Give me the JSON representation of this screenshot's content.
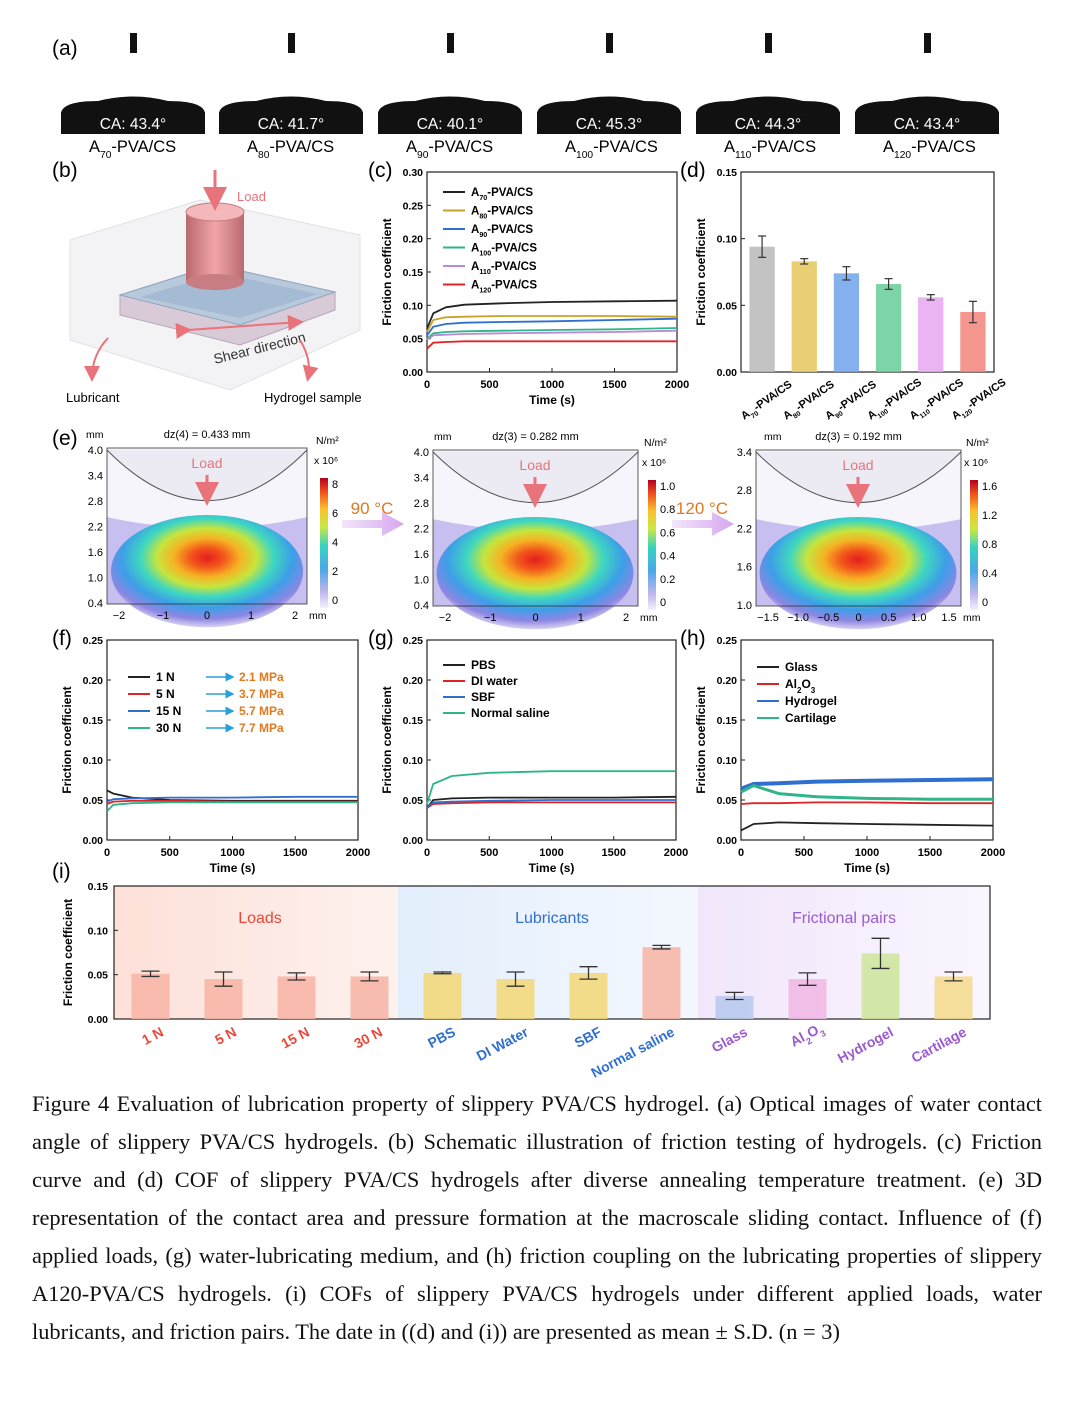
{
  "panel_labels": {
    "a": "(a)",
    "b": "(b)",
    "c": "(c)",
    "d": "(d)",
    "e": "(e)",
    "f": "(f)",
    "g": "(g)",
    "h": "(h)",
    "i": "(i)"
  },
  "contact_angles": [
    {
      "ca": "CA: 43.4°",
      "sample": "A70-PVA/CS",
      "prefix": "A",
      "sub": "70",
      "suffix": "-PVA/CS"
    },
    {
      "ca": "CA: 41.7°",
      "sample": "A80-PVA/CS",
      "prefix": "A",
      "sub": "80",
      "suffix": "-PVA/CS"
    },
    {
      "ca": "CA: 40.1°",
      "sample": "A90-PVA/CS",
      "prefix": "A",
      "sub": "90",
      "suffix": "-PVA/CS"
    },
    {
      "ca": "CA: 45.3°",
      "sample": "A100-PVA/CS",
      "prefix": "A",
      "sub": "100",
      "suffix": "-PVA/CS"
    },
    {
      "ca": "CA: 44.3°",
      "sample": "A110-PVA/CS",
      "prefix": "A",
      "sub": "110",
      "suffix": "-PVA/CS"
    },
    {
      "ca": "CA: 43.4°",
      "sample": "A120-PVA/CS",
      "prefix": "A",
      "sub": "120",
      "suffix": "-PVA/CS"
    }
  ],
  "schematic": {
    "load": "Load",
    "shear": "Shear direction",
    "lubricant": "Lubricant",
    "hydrogel": "Hydrogel sample"
  },
  "fea": {
    "panels": [
      {
        "dz": "dz(4) = 0.433 mm",
        "unit_top": "mm",
        "unit_right": "N/m²",
        "scale": "x 10⁶",
        "load": "Load",
        "yticks": [
          "4.0",
          "3.4",
          "2.8",
          "2.2",
          "1.6",
          "1.0",
          "0.4"
        ],
        "xticks": [
          "−2",
          "−1",
          "0",
          "1",
          "2"
        ],
        "xunit": "mm",
        "cticks": [
          "8",
          "6",
          "4",
          "2",
          "0"
        ]
      },
      {
        "dz": "dz(3) = 0.282 mm",
        "unit_top": "mm",
        "unit_right": "N/m²",
        "scale": "x 10⁶",
        "load": "Load",
        "yticks": [
          "4.0",
          "3.4",
          "2.8",
          "2.2",
          "1.6",
          "1.0",
          "0.4"
        ],
        "xticks": [
          "−2",
          "−1",
          "0",
          "1",
          "2"
        ],
        "xunit": "mm",
        "cticks": [
          "1.0",
          "0.8",
          "0.6",
          "0.4",
          "0.2",
          "0"
        ]
      },
      {
        "dz": "dz(3) = 0.192 mm",
        "unit_top": "mm",
        "unit_right": "N/m²",
        "scale": "x 10⁶",
        "load": "Load",
        "yticks": [
          "3.4",
          "2.8",
          "2.2",
          "1.6",
          "1.0"
        ],
        "xticks": [
          "−1.5",
          "−1.0",
          "−0.5",
          "0",
          "0.5",
          "1.0",
          "1.5"
        ],
        "xunit": "mm",
        "cticks": [
          "1.6",
          "1.2",
          "0.8",
          "0.4",
          "0"
        ]
      }
    ],
    "arrows": [
      "90 °C",
      "120 °C"
    ]
  },
  "colors": {
    "loads": "#e8483a",
    "lubricants": "#2f6fd0",
    "pairs": "#9a5bd0",
    "mpa": "#e07a20"
  },
  "chart_data": [
    {
      "id": "c",
      "type": "line",
      "xlabel": "Time (s)",
      "ylabel": "Friction coefficient",
      "xlim": [
        0,
        2000
      ],
      "ylim": [
        0,
        0.3
      ],
      "xticks": [
        0,
        500,
        1000,
        1500,
        2000
      ],
      "yticks": [
        0,
        0.05,
        0.1,
        0.15,
        0.2,
        0.25,
        0.3
      ],
      "series": [
        {
          "name": "A70-PVA/CS",
          "sub": "70",
          "color": "#222222",
          "x": [
            0,
            50,
            150,
            300,
            600,
            1000,
            1500,
            2000
          ],
          "y": [
            0.065,
            0.088,
            0.097,
            0.101,
            0.103,
            0.105,
            0.106,
            0.107
          ]
        },
        {
          "name": "A80-PVA/CS",
          "sub": "80",
          "color": "#c9a227",
          "x": [
            0,
            50,
            150,
            300,
            600,
            1000,
            1500,
            2000
          ],
          "y": [
            0.06,
            0.078,
            0.082,
            0.083,
            0.084,
            0.084,
            0.084,
            0.083
          ]
        },
        {
          "name": "A90-PVA/CS",
          "sub": "90",
          "color": "#2f6fd0",
          "x": [
            0,
            50,
            150,
            300,
            600,
            1000,
            1500,
            2000
          ],
          "y": [
            0.055,
            0.068,
            0.072,
            0.074,
            0.075,
            0.076,
            0.078,
            0.08
          ]
        },
        {
          "name": "A100-PVA/CS",
          "sub": "100",
          "color": "#2fb58a",
          "x": [
            0,
            50,
            150,
            300,
            600,
            1000,
            1500,
            2000
          ],
          "y": [
            0.05,
            0.058,
            0.06,
            0.061,
            0.062,
            0.063,
            0.064,
            0.066
          ]
        },
        {
          "name": "A110-PVA/CS",
          "sub": "110",
          "color": "#b88ad8",
          "x": [
            0,
            50,
            150,
            300,
            600,
            1000,
            1500,
            2000
          ],
          "y": [
            0.048,
            0.055,
            0.056,
            0.057,
            0.058,
            0.059,
            0.06,
            0.062
          ]
        },
        {
          "name": "A120-PVA/CS",
          "sub": "120",
          "color": "#e02424",
          "x": [
            0,
            50,
            150,
            300,
            600,
            1000,
            1500,
            2000
          ],
          "y": [
            0.035,
            0.044,
            0.045,
            0.046,
            0.046,
            0.046,
            0.046,
            0.046
          ]
        }
      ]
    },
    {
      "id": "d",
      "type": "bar",
      "ylabel": "Friction coefficient",
      "ylim": [
        0,
        0.15
      ],
      "yticks": [
        0,
        0.05,
        0.1,
        0.15
      ],
      "categories": [
        "A70-PVA/CS",
        "A80-PVA/CS",
        "A90-PVA/CS",
        "A100-PVA/CS",
        "A110-PVA/CS",
        "A120-PVA/CS"
      ],
      "subs": [
        "70",
        "80",
        "90",
        "100",
        "110",
        "120"
      ],
      "values": [
        0.094,
        0.083,
        0.074,
        0.066,
        0.056,
        0.045
      ],
      "errors": [
        0.008,
        0.002,
        0.005,
        0.004,
        0.002,
        0.008
      ],
      "colors": [
        "#b9b9b9",
        "#e5c65a",
        "#6fa2ea",
        "#67cc9a",
        "#e6a6ef",
        "#f2837a"
      ]
    },
    {
      "id": "f",
      "type": "line",
      "xlabel": "Time (s)",
      "ylabel": "Friction coefficient",
      "xlim": [
        0,
        2000
      ],
      "ylim": [
        0,
        0.25
      ],
      "xticks": [
        0,
        500,
        1000,
        1500,
        2000
      ],
      "yticks": [
        0,
        0.05,
        0.1,
        0.15,
        0.2,
        0.25
      ],
      "series": [
        {
          "name": "1 N",
          "pressure": "2.1 MPa",
          "color": "#222222",
          "x": [
            0,
            50,
            200,
            500,
            1000,
            1500,
            2000
          ],
          "y": [
            0.062,
            0.058,
            0.053,
            0.05,
            0.049,
            0.049,
            0.049
          ]
        },
        {
          "name": "5 N",
          "pressure": "3.7 MPa",
          "color": "#e02424",
          "x": [
            0,
            50,
            200,
            500,
            1000,
            1500,
            2000
          ],
          "y": [
            0.045,
            0.048,
            0.049,
            0.049,
            0.048,
            0.048,
            0.048
          ]
        },
        {
          "name": "15 N",
          "pressure": "5.7 MPa",
          "color": "#2f6fd0",
          "x": [
            0,
            50,
            200,
            500,
            1000,
            1500,
            2000
          ],
          "y": [
            0.048,
            0.051,
            0.052,
            0.053,
            0.053,
            0.054,
            0.054
          ]
        },
        {
          "name": "30 N",
          "pressure": "7.7 MPa",
          "color": "#2fb58a",
          "x": [
            0,
            50,
            200,
            500,
            1000,
            1500,
            2000
          ],
          "y": [
            0.036,
            0.044,
            0.046,
            0.047,
            0.047,
            0.047,
            0.047
          ]
        }
      ]
    },
    {
      "id": "g",
      "type": "line",
      "xlabel": "Time (s)",
      "ylabel": "Friction coefficient",
      "xlim": [
        0,
        2000
      ],
      "ylim": [
        0,
        0.25
      ],
      "xticks": [
        0,
        500,
        1000,
        1500,
        2000
      ],
      "yticks": [
        0,
        0.05,
        0.1,
        0.15,
        0.2,
        0.25
      ],
      "series": [
        {
          "name": "PBS",
          "color": "#222222",
          "x": [
            0,
            50,
            200,
            500,
            1000,
            1500,
            2000
          ],
          "y": [
            0.04,
            0.05,
            0.052,
            0.053,
            0.053,
            0.053,
            0.054
          ]
        },
        {
          "name": "DI water",
          "color": "#e02424",
          "x": [
            0,
            50,
            200,
            500,
            1000,
            1500,
            2000
          ],
          "y": [
            0.04,
            0.045,
            0.046,
            0.047,
            0.047,
            0.047,
            0.047
          ]
        },
        {
          "name": "SBF",
          "color": "#2f6fd0",
          "x": [
            0,
            50,
            200,
            500,
            1000,
            1500,
            2000
          ],
          "y": [
            0.04,
            0.047,
            0.048,
            0.049,
            0.05,
            0.05,
            0.05
          ]
        },
        {
          "name": "Normal saline",
          "color": "#2fb58a",
          "x": [
            0,
            50,
            200,
            500,
            1000,
            1500,
            2000
          ],
          "y": [
            0.045,
            0.07,
            0.08,
            0.084,
            0.086,
            0.086,
            0.086
          ]
        }
      ]
    },
    {
      "id": "h",
      "type": "line",
      "xlabel": "Time (s)",
      "ylabel": "Friction coefficient",
      "xlim": [
        0,
        2000
      ],
      "ylim": [
        0,
        0.25
      ],
      "xticks": [
        0,
        500,
        1000,
        1500,
        2000
      ],
      "yticks": [
        0,
        0.05,
        0.1,
        0.15,
        0.2,
        0.25
      ],
      "series": [
        {
          "name": "Glass",
          "color": "#222222",
          "x": [
            0,
            100,
            300,
            600,
            1000,
            1500,
            2000
          ],
          "y": [
            0.012,
            0.02,
            0.022,
            0.021,
            0.02,
            0.019,
            0.018
          ]
        },
        {
          "name": "Al2O3",
          "html": "Al<tspan baseline-shift='sub' font-size='8'>2</tspan>O<tspan baseline-shift='sub' font-size='8'>3</tspan>",
          "color": "#e02424",
          "x": [
            0,
            100,
            300,
            600,
            1000,
            1500,
            2000
          ],
          "y": [
            0.045,
            0.046,
            0.046,
            0.047,
            0.047,
            0.046,
            0.046
          ]
        },
        {
          "name": "Hydrogel",
          "color": "#2f6fd0",
          "x": [
            0,
            100,
            300,
            600,
            1000,
            1500,
            2000
          ],
          "y": [
            0.064,
            0.07,
            0.071,
            0.073,
            0.074,
            0.075,
            0.076
          ]
        },
        {
          "name": "Cartilage",
          "color": "#2fb58a",
          "x": [
            0,
            100,
            300,
            600,
            1000,
            1500,
            2000
          ],
          "y": [
            0.06,
            0.068,
            0.058,
            0.054,
            0.052,
            0.051,
            0.051
          ]
        }
      ]
    },
    {
      "id": "i",
      "type": "bar",
      "ylabel": "Friction coefficient",
      "ylim": [
        0,
        0.15
      ],
      "yticks": [
        0,
        0.05,
        0.1,
        0.15
      ],
      "groups": [
        {
          "name": "Loads",
          "color": "#e8483a"
        },
        {
          "name": "Lubricants",
          "color": "#2f6fd0"
        },
        {
          "name": "Frictional pairs",
          "color": "#9a5bd0"
        }
      ],
      "categories": [
        "1 N",
        "5 N",
        "15 N",
        "30 N",
        "PBS",
        "DI Water",
        "SBF",
        "Normal saline",
        "Glass",
        "Al2O3",
        "Hydrogel",
        "Cartilage"
      ],
      "values": [
        0.051,
        0.045,
        0.048,
        0.048,
        0.052,
        0.045,
        0.052,
        0.081,
        0.026,
        0.045,
        0.074,
        0.048
      ],
      "errors": [
        0.003,
        0.008,
        0.004,
        0.005,
        0.001,
        0.008,
        0.007,
        0.002,
        0.004,
        0.007,
        0.017,
        0.005
      ],
      "bar_colors": [
        "#f7b3a3",
        "#f7b3a3",
        "#f7b3a3",
        "#f7b3a3",
        "#f3d774",
        "#f3d774",
        "#f3d774",
        "#f7b3a3",
        "#b7c8ee",
        "#f0b6e3",
        "#cde59a",
        "#f5d98a"
      ],
      "label_colors": [
        "#e8483a",
        "#e8483a",
        "#e8483a",
        "#e8483a",
        "#2f6fd0",
        "#2f6fd0",
        "#2f6fd0",
        "#2f6fd0",
        "#9a5bd0",
        "#9a5bd0",
        "#9a5bd0",
        "#9a5bd0"
      ]
    }
  ],
  "caption": "Figure 4 Evaluation of lubrication property of slippery PVA/CS hydrogel. (a) Optical images of water contact angle of slippery PVA/CS hydrogels. (b) Schematic illustration of friction testing of hydrogels. (c) Friction curve and (d) COF of slippery PVA/CS hydrogels after diverse annealing temperature treatment. (e) 3D representation of the contact area and pressure formation at the macroscale sliding contact. Influence of (f) applied loads, (g) water-lubricating medium, and (h) friction coupling on the lubricating properties of slippery A120-PVA/CS hydrogels. (i) COFs of slippery PVA/CS hydrogels under different applied loads, water lubricants, and friction pairs. The date in ((d) and (i)) are presented as mean ± S.D. (n = 3)"
}
